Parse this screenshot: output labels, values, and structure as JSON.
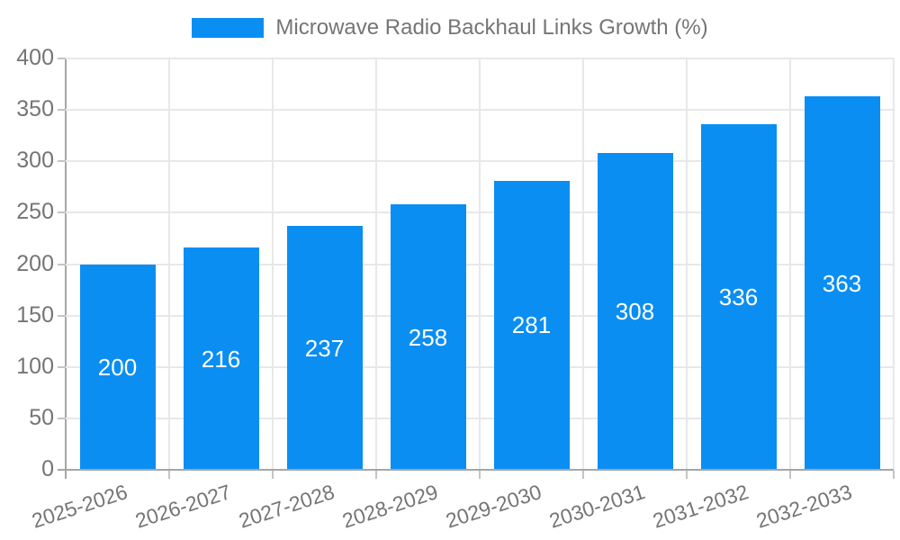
{
  "chart_data": {
    "type": "bar",
    "title": "Microwave Radio Backhaul Links Growth (%)",
    "categories": [
      "2025-2026",
      "2026-2027",
      "2027-2028",
      "2028-2029",
      "2029-2030",
      "2030-2031",
      "2031-2032",
      "2032-2033"
    ],
    "series": [
      {
        "name": "Microwave Radio Backhaul Links Growth (%)",
        "values": [
          200,
          216,
          237,
          258,
          281,
          308,
          336,
          363
        ]
      }
    ],
    "xlabel": "",
    "ylabel": "",
    "ylim": [
      0,
      400
    ],
    "ytick_step": 50,
    "yticks": [
      0,
      50,
      100,
      150,
      200,
      250,
      300,
      350,
      400
    ],
    "grid": true,
    "legend_position": "top",
    "bar_color": "#0b8ef2",
    "bar_label_color": "#ffffff",
    "text_color": "#757575",
    "grid_color": "#e8e8e8",
    "axis_color": "#a6a6a6",
    "tick_color": "#c4c4c4",
    "xtick_rotation_deg": -18
  }
}
